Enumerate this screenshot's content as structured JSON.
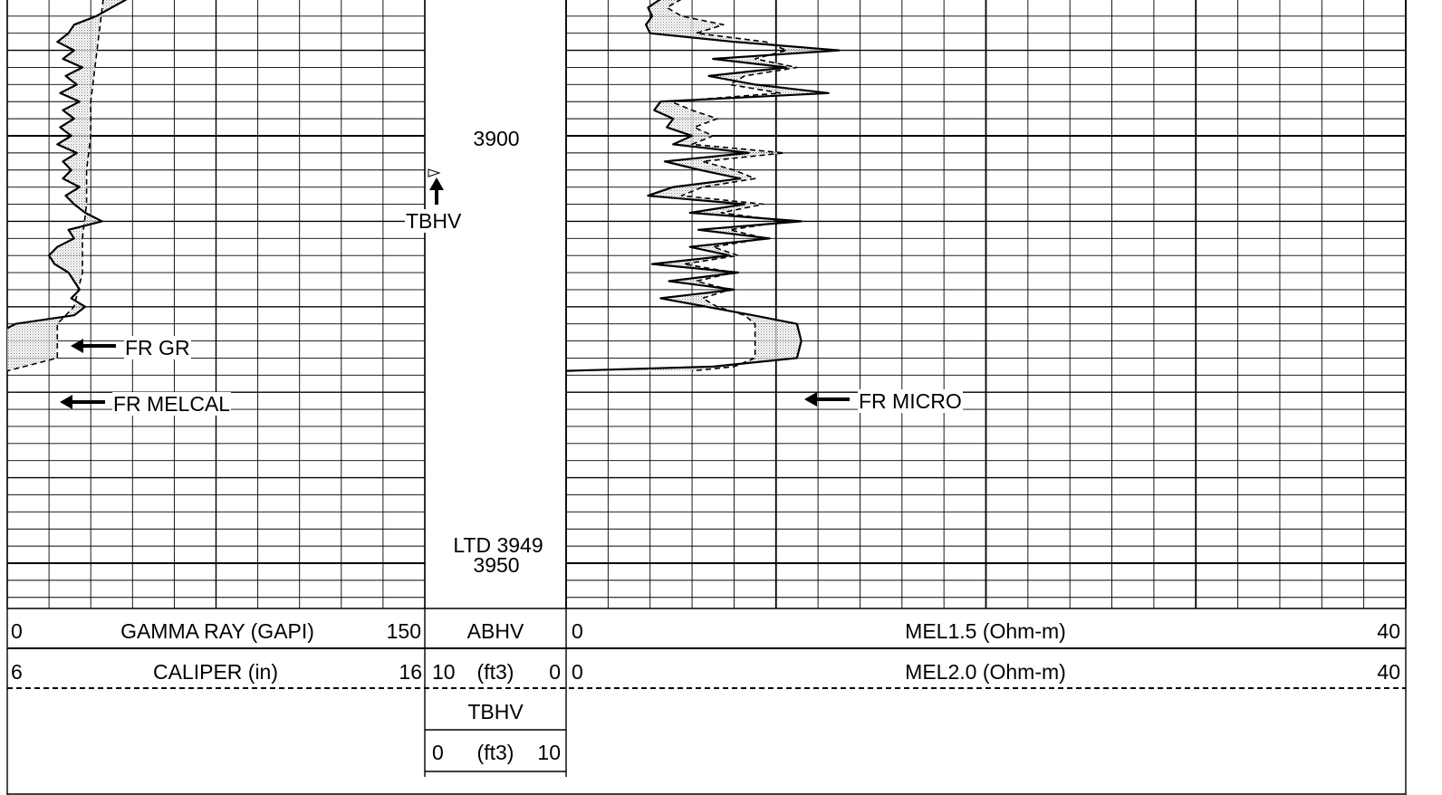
{
  "chart_data": {
    "type": "line",
    "title": "",
    "depth_axis": {
      "unit": "ft",
      "major_labels": [
        {
          "depth": 3900,
          "text": "3900"
        },
        {
          "depth": 3950,
          "text": "3950"
        }
      ],
      "ltd_label": "LTD 3949",
      "ltd_depth": 3949,
      "range": [
        3884,
        3955
      ]
    },
    "annotations": {
      "tbhv": "TBHV",
      "fr_gr": "FR GR",
      "fr_melcal": "FR MELCAL",
      "fr_micro": "FR MICRO"
    },
    "tracks": {
      "track1": {
        "gamma_ray": {
          "name": "GAMMA RAY (GAPI)",
          "min": "0",
          "max": "150",
          "xlim": [
            0,
            150
          ]
        },
        "caliper": {
          "name": "CALIPER (in)",
          "min": "6",
          "max": "16",
          "xlim": [
            6,
            16
          ]
        }
      },
      "depth_track": {
        "abhv": {
          "name": "ABHV",
          "min": "10",
          "unit": "(ft3)",
          "max": "0"
        },
        "tbhv": {
          "name": "TBHV",
          "min": "0",
          "unit": "(ft3)",
          "max": "10"
        }
      },
      "track2": {
        "mel15": {
          "name": "MEL1.5 (Ohm-m)",
          "min": "0",
          "max": "40",
          "xlim": [
            0,
            40
          ]
        },
        "mel20": {
          "name": "MEL2.0 (Ohm-m)",
          "min": "0",
          "max": "40",
          "xlim": [
            0,
            40
          ]
        }
      }
    },
    "series": [
      {
        "name": "GAMMA RAY (GAPI)",
        "style": "solid",
        "track": "track1",
        "xlim": [
          0,
          150
        ],
        "points": [
          [
            3884,
            43
          ],
          [
            3886,
            32
          ],
          [
            3887,
            24
          ],
          [
            3888,
            22
          ],
          [
            3889,
            18
          ],
          [
            3890,
            24
          ],
          [
            3891,
            20
          ],
          [
            3892,
            27
          ],
          [
            3893,
            21
          ],
          [
            3894,
            25
          ],
          [
            3895,
            19
          ],
          [
            3896,
            26
          ],
          [
            3897,
            20
          ],
          [
            3898,
            24
          ],
          [
            3899,
            19
          ],
          [
            3900,
            23
          ],
          [
            3901,
            18
          ],
          [
            3902,
            25
          ],
          [
            3903,
            20
          ],
          [
            3904,
            23
          ],
          [
            3905,
            20
          ],
          [
            3906,
            26
          ],
          [
            3907,
            21
          ],
          [
            3908,
            24
          ],
          [
            3909,
            28
          ],
          [
            3910,
            34
          ],
          [
            3911,
            22
          ],
          [
            3912,
            24
          ],
          [
            3913,
            18
          ],
          [
            3914,
            15
          ],
          [
            3915,
            17
          ],
          [
            3916,
            22
          ],
          [
            3917,
            24
          ],
          [
            3918,
            26
          ],
          [
            3919,
            23
          ],
          [
            3920,
            28
          ],
          [
            3921,
            24
          ],
          [
            3922,
            3
          ],
          [
            3922.5,
            0
          ]
        ]
      },
      {
        "name": "CALIPER (in)",
        "style": "dashed",
        "track": "track1",
        "xlim": [
          6,
          16
        ],
        "points": [
          [
            3884,
            8.3
          ],
          [
            3888,
            8.2
          ],
          [
            3892,
            8.1
          ],
          [
            3896,
            8.0
          ],
          [
            3900,
            8.0
          ],
          [
            3904,
            7.9
          ],
          [
            3908,
            7.9
          ],
          [
            3912,
            7.8
          ],
          [
            3916,
            7.8
          ],
          [
            3920,
            7.6
          ],
          [
            3922,
            7.2
          ],
          [
            3923,
            7.2
          ],
          [
            3926,
            7.2
          ],
          [
            3927.5,
            6.0
          ]
        ]
      },
      {
        "name": "MEL1.5 (Ohm-m)",
        "style": "solid",
        "track": "track2",
        "xlim": [
          0,
          40
        ],
        "points": [
          [
            3884,
            4.5
          ],
          [
            3885,
            3.9
          ],
          [
            3886,
            4.1
          ],
          [
            3887,
            3.8
          ],
          [
            3888,
            4.0
          ],
          [
            3889,
            8.0
          ],
          [
            3890,
            13.0
          ],
          [
            3891,
            7.0
          ],
          [
            3892,
            10.5
          ],
          [
            3893,
            6.8
          ],
          [
            3894,
            9.0
          ],
          [
            3895,
            12.5
          ],
          [
            3896,
            4.5
          ],
          [
            3897,
            4.2
          ],
          [
            3898,
            5.1
          ],
          [
            3899,
            4.8
          ],
          [
            3900,
            6.0
          ],
          [
            3901,
            5.1
          ],
          [
            3902,
            8.7
          ],
          [
            3903,
            4.7
          ],
          [
            3904,
            6.4
          ],
          [
            3905,
            8.3
          ],
          [
            3906,
            5.1
          ],
          [
            3907,
            3.9
          ],
          [
            3908,
            8.5
          ],
          [
            3909,
            5.9
          ],
          [
            3910,
            11.2
          ],
          [
            3911,
            6.3
          ],
          [
            3912,
            9.7
          ],
          [
            3913,
            5.9
          ],
          [
            3914,
            7.8
          ],
          [
            3915,
            4.1
          ],
          [
            3916,
            8.2
          ],
          [
            3917,
            4.9
          ],
          [
            3918,
            8.0
          ],
          [
            3919,
            4.5
          ],
          [
            3920,
            6.7
          ],
          [
            3921,
            8.9
          ],
          [
            3922,
            11.0
          ],
          [
            3924,
            11.2
          ],
          [
            3926,
            11.0
          ],
          [
            3927,
            7.0
          ],
          [
            3927.5,
            0
          ]
        ]
      },
      {
        "name": "MEL2.0 (Ohm-m)",
        "style": "dashed",
        "track": "track2",
        "xlim": [
          0,
          40
        ],
        "points": [
          [
            3884,
            5.5
          ],
          [
            3885,
            4.8
          ],
          [
            3886,
            5.5
          ],
          [
            3887,
            7.5
          ],
          [
            3888,
            6.2
          ],
          [
            3889,
            9.5
          ],
          [
            3890,
            10.5
          ],
          [
            3891,
            9.0
          ],
          [
            3892,
            11.0
          ],
          [
            3893,
            8.5
          ],
          [
            3894,
            7.8
          ],
          [
            3895,
            10.2
          ],
          [
            3896,
            5.0
          ],
          [
            3897,
            6.0
          ],
          [
            3898,
            7.2
          ],
          [
            3899,
            6.1
          ],
          [
            3900,
            7.0
          ],
          [
            3901,
            6.0
          ],
          [
            3902,
            10.4
          ],
          [
            3903,
            6.5
          ],
          [
            3904,
            8.0
          ],
          [
            3905,
            9.0
          ],
          [
            3906,
            6.5
          ],
          [
            3907,
            5.5
          ],
          [
            3908,
            9.4
          ],
          [
            3909,
            7.4
          ],
          [
            3910,
            10.5
          ],
          [
            3911,
            7.8
          ],
          [
            3912,
            9.5
          ],
          [
            3913,
            7.0
          ],
          [
            3914,
            8.2
          ],
          [
            3915,
            5.6
          ],
          [
            3916,
            8.0
          ],
          [
            3917,
            6.2
          ],
          [
            3918,
            7.8
          ],
          [
            3919,
            6.5
          ],
          [
            3920,
            7.2
          ],
          [
            3921,
            8.5
          ],
          [
            3922,
            9.0
          ],
          [
            3924,
            9.0
          ],
          [
            3926,
            9.0
          ],
          [
            3927,
            8.0
          ],
          [
            3927.5,
            6.0
          ]
        ]
      }
    ]
  }
}
